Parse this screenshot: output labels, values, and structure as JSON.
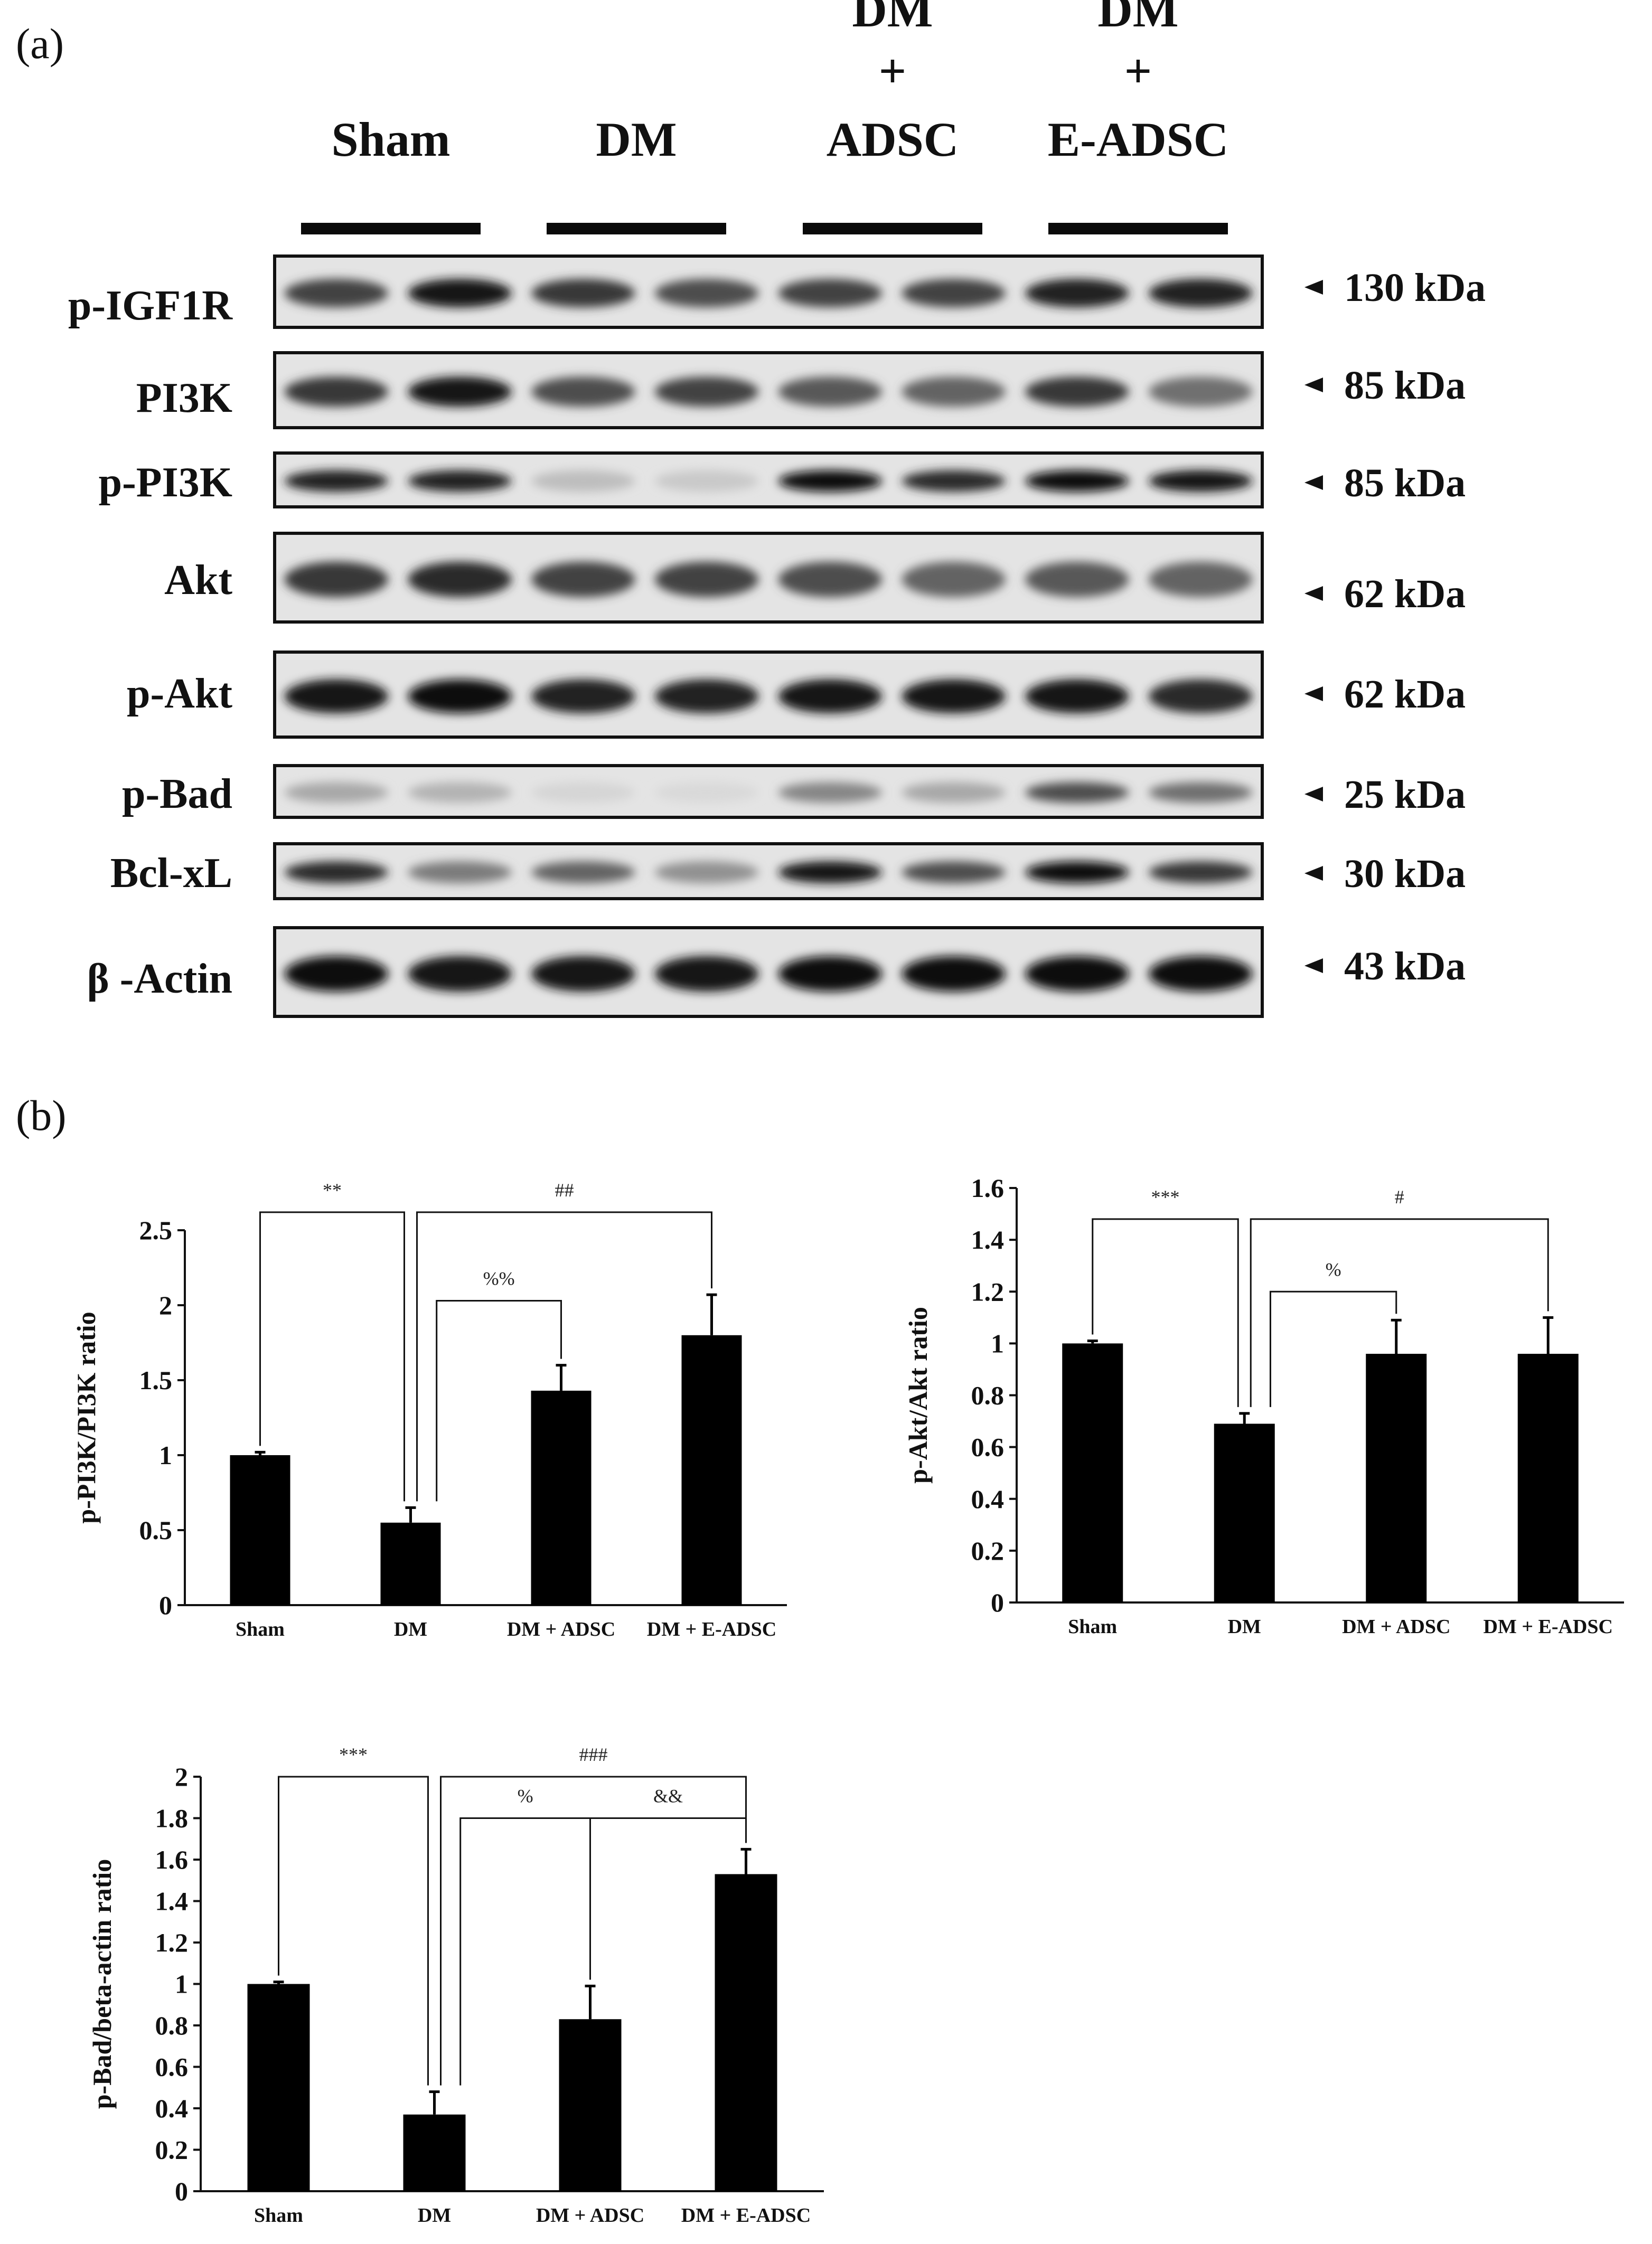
{
  "panels": {
    "a": "(a)",
    "b": "(b)"
  },
  "blot": {
    "groups": [
      {
        "lines": [
          "Sham"
        ]
      },
      {
        "lines": [
          "DM"
        ]
      },
      {
        "lines": [
          "DM",
          "+",
          "ADSC"
        ]
      },
      {
        "lines": [
          "DM",
          "+",
          "E-ADSC"
        ]
      }
    ],
    "rows": [
      {
        "protein": "p-IGF1R",
        "marker": "130 kDa",
        "intensity": [
          0.75,
          0.95,
          0.8,
          0.7,
          0.75,
          0.75,
          0.9,
          0.9
        ]
      },
      {
        "protein": "PI3K",
        "marker": "85 kDa",
        "intensity": [
          0.8,
          0.95,
          0.7,
          0.75,
          0.65,
          0.6,
          0.8,
          0.55
        ]
      },
      {
        "protein": "p-PI3K",
        "marker": "85 kDa",
        "intensity": [
          0.9,
          0.9,
          0.2,
          0.15,
          0.98,
          0.85,
          0.98,
          0.95
        ]
      },
      {
        "protein": "Akt",
        "marker": "62 kDa",
        "intensity": [
          0.8,
          0.85,
          0.75,
          0.75,
          0.7,
          0.6,
          0.65,
          0.6
        ]
      },
      {
        "protein": "p-Akt",
        "marker": "62 kDa",
        "intensity": [
          0.95,
          0.97,
          0.9,
          0.9,
          0.95,
          0.95,
          0.95,
          0.85
        ]
      },
      {
        "protein": "p-Bad",
        "marker": "25 kDa",
        "intensity": [
          0.3,
          0.25,
          0.1,
          0.08,
          0.45,
          0.3,
          0.7,
          0.55
        ]
      },
      {
        "protein": "Bcl-xL",
        "marker": "30 kDa",
        "intensity": [
          0.85,
          0.5,
          0.6,
          0.4,
          0.95,
          0.7,
          0.98,
          0.8
        ]
      },
      {
        "protein": "β -Actin",
        "marker": "43 kDa",
        "intensity": [
          0.97,
          0.95,
          0.95,
          0.95,
          0.98,
          0.98,
          0.98,
          0.98
        ]
      }
    ]
  },
  "chart_data": [
    {
      "type": "bar",
      "categories": [
        "Sham",
        "DM",
        "DM + ADSC",
        "DM + E-ADSC"
      ],
      "values": [
        1.0,
        0.55,
        1.43,
        1.8
      ],
      "errors": [
        0.02,
        0.1,
        0.17,
        0.27
      ],
      "ylabel": "p-PI3K/PI3K ratio",
      "ylim": [
        0,
        2.5
      ],
      "yticks": [
        "0",
        "0.5",
        "1",
        "1.5",
        "2",
        "2.5"
      ],
      "grid": false,
      "annotations": [
        {
          "label": "**",
          "from": 0,
          "to": 1,
          "level": 2.62
        },
        {
          "label": "##",
          "from": 1,
          "to": 3,
          "level": 2.62
        },
        {
          "label": "%%",
          "from": 1,
          "to": 2,
          "level": 2.03
        }
      ]
    },
    {
      "type": "bar",
      "categories": [
        "Sham",
        "DM",
        "DM + ADSC",
        "DM + E-ADSC"
      ],
      "values": [
        1.0,
        0.69,
        0.96,
        0.96
      ],
      "errors": [
        0.01,
        0.04,
        0.13,
        0.14
      ],
      "ylabel": "p-Akt/Akt ratio",
      "ylim": [
        0,
        1.6
      ],
      "yticks": [
        "0",
        "0.2",
        "0.4",
        "0.6",
        "0.8",
        "1",
        "1.2",
        "1.4",
        "1.6"
      ],
      "grid": false,
      "annotations": [
        {
          "label": "***",
          "from": 0,
          "to": 1,
          "level": 1.48
        },
        {
          "label": "#",
          "from": 1,
          "to": 3,
          "level": 1.48
        },
        {
          "label": "%",
          "from": 1,
          "to": 2,
          "level": 1.2
        }
      ]
    },
    {
      "type": "bar",
      "categories": [
        "Sham",
        "DM",
        "DM + ADSC",
        "DM + E-ADSC"
      ],
      "values": [
        1.0,
        0.37,
        0.83,
        1.53
      ],
      "errors": [
        0.01,
        0.11,
        0.16,
        0.12
      ],
      "ylabel": "p-Bad/beta-actin ratio",
      "ylim": [
        0,
        2.0
      ],
      "yticks": [
        "0",
        "0.2",
        "0.4",
        "0.6",
        "0.8",
        "1",
        "1.2",
        "1.4",
        "1.6",
        "1.8",
        "2"
      ],
      "grid": false,
      "annotations": [
        {
          "label": "***",
          "from": 0,
          "to": 1,
          "level": 2.0
        },
        {
          "label": "###",
          "from": 1,
          "to": 3,
          "level": 2.0
        },
        {
          "label": "%",
          "from": 1,
          "to": 2,
          "level": 1.8
        },
        {
          "label": "&&",
          "from": 2,
          "to": 3,
          "level": 1.8
        }
      ]
    }
  ]
}
